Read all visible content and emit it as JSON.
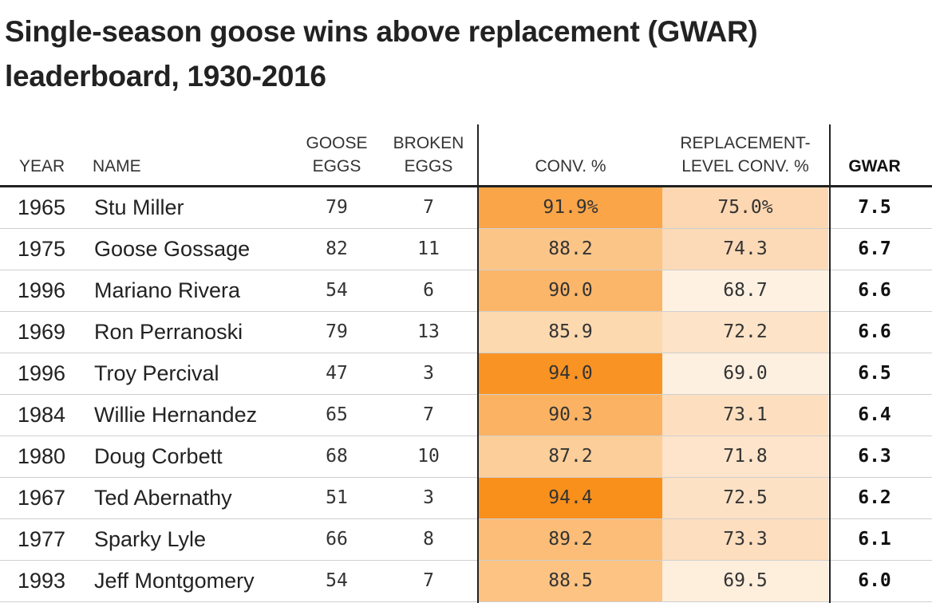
{
  "title": "Single-season goose wins above replacement (GWAR) leaderboard, 1930-2016",
  "headers": {
    "year": "YEAR",
    "name": "NAME",
    "goose_eggs_1": "GOOSE",
    "goose_eggs_2": "EGGS",
    "broken_eggs_1": "BROKEN",
    "broken_eggs_2": "EGGS",
    "conv": "CONV. %",
    "repl_1": "REPLACEMENT-",
    "repl_2": "LEVEL CONV. %",
    "gwar": "GWAR"
  },
  "colors": {
    "text": "#222222",
    "conv_scale": [
      "#fdd9b0",
      "#f9901c"
    ],
    "repl_scale": [
      "#fef1e2",
      "#fdd7b2"
    ]
  },
  "chart_data": {
    "type": "table",
    "columns": [
      "YEAR",
      "NAME",
      "GOOSE EGGS",
      "BROKEN EGGS",
      "CONV. %",
      "REPLACEMENT-LEVEL CONV. %",
      "GWAR"
    ],
    "rows": [
      {
        "year": "1965",
        "name": "Stu Miller",
        "goose_eggs": "79",
        "broken_eggs": "7",
        "conv": "91.9%",
        "repl": "75.0%",
        "gwar": "7.5",
        "conv_value": 91.9,
        "repl_value": 75.0
      },
      {
        "year": "1975",
        "name": "Goose Gossage",
        "goose_eggs": "82",
        "broken_eggs": "11",
        "conv": "88.2",
        "repl": "74.3",
        "gwar": "6.7",
        "conv_value": 88.2,
        "repl_value": 74.3
      },
      {
        "year": "1996",
        "name": "Mariano Rivera",
        "goose_eggs": "54",
        "broken_eggs": "6",
        "conv": "90.0",
        "repl": "68.7",
        "gwar": "6.6",
        "conv_value": 90.0,
        "repl_value": 68.7
      },
      {
        "year": "1969",
        "name": "Ron Perranoski",
        "goose_eggs": "79",
        "broken_eggs": "13",
        "conv": "85.9",
        "repl": "72.2",
        "gwar": "6.6",
        "conv_value": 85.9,
        "repl_value": 72.2
      },
      {
        "year": "1996",
        "name": "Troy Percival",
        "goose_eggs": "47",
        "broken_eggs": "3",
        "conv": "94.0",
        "repl": "69.0",
        "gwar": "6.5",
        "conv_value": 94.0,
        "repl_value": 69.0
      },
      {
        "year": "1984",
        "name": "Willie Hernandez",
        "goose_eggs": "65",
        "broken_eggs": "7",
        "conv": "90.3",
        "repl": "73.1",
        "gwar": "6.4",
        "conv_value": 90.3,
        "repl_value": 73.1
      },
      {
        "year": "1980",
        "name": "Doug Corbett",
        "goose_eggs": "68",
        "broken_eggs": "10",
        "conv": "87.2",
        "repl": "71.8",
        "gwar": "6.3",
        "conv_value": 87.2,
        "repl_value": 71.8
      },
      {
        "year": "1967",
        "name": "Ted Abernathy",
        "goose_eggs": "51",
        "broken_eggs": "3",
        "conv": "94.4",
        "repl": "72.5",
        "gwar": "6.2",
        "conv_value": 94.4,
        "repl_value": 72.5
      },
      {
        "year": "1977",
        "name": "Sparky Lyle",
        "goose_eggs": "66",
        "broken_eggs": "8",
        "conv": "89.2",
        "repl": "73.3",
        "gwar": "6.1",
        "conv_value": 89.2,
        "repl_value": 73.3
      },
      {
        "year": "1993",
        "name": "Jeff Montgomery",
        "goose_eggs": "54",
        "broken_eggs": "7",
        "conv": "88.5",
        "repl": "69.5",
        "gwar": "6.0",
        "conv_value": 88.5,
        "repl_value": 69.5
      }
    ]
  }
}
